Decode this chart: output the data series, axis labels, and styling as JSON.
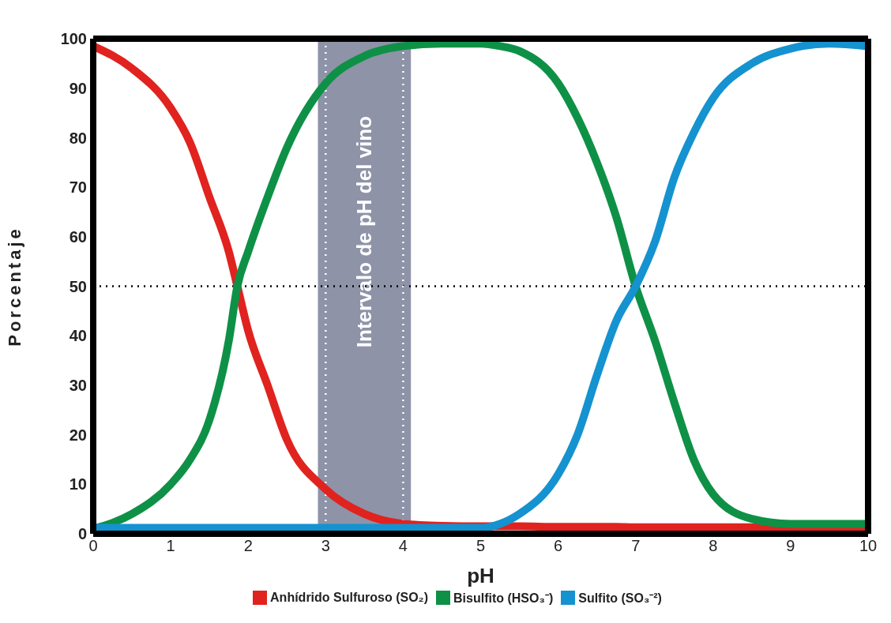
{
  "chart_data": {
    "type": "line",
    "xlabel": "pH",
    "ylabel": "Porcentaje",
    "x": [
      0,
      0.5,
      1,
      1.25,
      1.5,
      1.75,
      1.86,
      2,
      2.25,
      2.5,
      3,
      3.5,
      4,
      4.5,
      5,
      5.25,
      5.5,
      6,
      6.25,
      6.5,
      6.75,
      7,
      7.25,
      7.5,
      7.75,
      8,
      8.5,
      9,
      9.5,
      10
    ],
    "series": [
      {
        "name": "Anhídrido Sulfuroso (SO₂)",
        "color": "#e0231f",
        "values": [
          98.5,
          94,
          86,
          79,
          68,
          57,
          50,
          41,
          30,
          19,
          9,
          4,
          2,
          1.6,
          1.5,
          1.5,
          1.5,
          1.4,
          1.4,
          1.4,
          1.4,
          1.3,
          1.3,
          1.3,
          1.3,
          1.3,
          1.3,
          1.3,
          1.3,
          1.3
        ]
      },
      {
        "name": "Bisulfito (HSO₃⁻)",
        "color": "#0e9146",
        "values": [
          1,
          4,
          10,
          15,
          23,
          39,
          50,
          57,
          68,
          78,
          91,
          96.5,
          98.5,
          99,
          99,
          98.5,
          97.5,
          91,
          84,
          75,
          64,
          50,
          39,
          26.5,
          15,
          8,
          3,
          2,
          2,
          2
        ]
      },
      {
        "name": "Sulfito (SO₃⁻²)",
        "color": "#1592d0",
        "values": [
          1.2,
          1.2,
          1.2,
          1.2,
          1.2,
          1.2,
          1.2,
          1.2,
          1.2,
          1.2,
          1.2,
          1.2,
          1.2,
          1.2,
          1.2,
          2,
          4,
          12,
          20,
          32,
          43,
          50,
          59,
          72,
          81,
          88,
          95,
          98,
          99,
          98.5
        ]
      }
    ],
    "xlim": [
      0,
      10
    ],
    "xticks": [
      0,
      1,
      2,
      3,
      4,
      5,
      6,
      7,
      8,
      9,
      10
    ],
    "ylim": [
      0,
      100
    ],
    "yticks": [
      0,
      10,
      20,
      30,
      40,
      50,
      60,
      70,
      80,
      90,
      100
    ],
    "bands": [
      {
        "axis": "x",
        "from": 2.9,
        "to": 4.1,
        "label": "Intervalo de pH del vino",
        "color": "#8e93a8"
      }
    ],
    "ref_lines": [
      {
        "axis": "y",
        "value": 50,
        "color": "#000000",
        "line_style": "dotted"
      },
      {
        "axis": "x",
        "value": 3,
        "color": "#ffffff",
        "line_style": "dotted"
      },
      {
        "axis": "x",
        "value": 4,
        "color": "#ffffff",
        "line_style": "dotted"
      }
    ],
    "legend": "bottom",
    "grid": false,
    "marker": "none",
    "line_style": "solid"
  }
}
